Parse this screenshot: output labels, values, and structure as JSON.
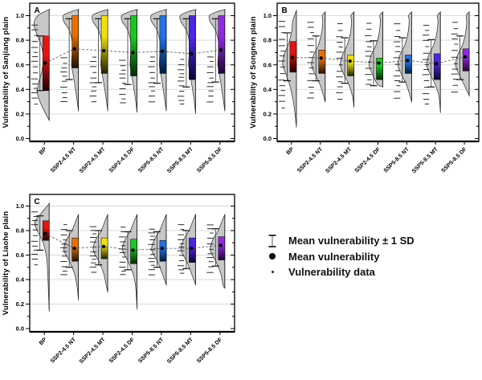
{
  "axis": {
    "range": [
      0,
      1.1
    ],
    "tick_labels": [
      "0.0",
      "0.2",
      "0.4",
      "0.6",
      "0.8",
      "1.0"
    ]
  },
  "categories": [
    "BP",
    "SSP2-4.5 NT",
    "SSP2-4.5 MT",
    "SSP2-4.5 DF",
    "SSP5-8.5 NT",
    "SSP5-8.5 MT",
    "SSP5-8.5 DF"
  ],
  "palette": [
    {
      "name": "red",
      "top": "#e81414",
      "bottom": "#1f0000"
    },
    {
      "name": "orange",
      "top": "#ee6f00",
      "bottom": "#221100"
    },
    {
      "name": "yellow",
      "top": "#f0e10a",
      "bottom": "#222200"
    },
    {
      "name": "green",
      "top": "#12cc1c",
      "bottom": "#012b01"
    },
    {
      "name": "blue",
      "top": "#2273e6",
      "bottom": "#001a3d"
    },
    {
      "name": "blue-violet",
      "top": "#4e26e2",
      "bottom": "#0c0433"
    },
    {
      "name": "violet",
      "top": "#9329e6",
      "bottom": "#1e0536"
    }
  ],
  "legend": {
    "items": [
      {
        "icon": "errorbar-icon",
        "label": "Mean vulnerability ± 1 SD"
      },
      {
        "icon": "mean-dot-icon",
        "label": "Mean vulnerability"
      },
      {
        "icon": "data-dot-icon",
        "label": "Vulnerability data"
      }
    ]
  },
  "chart_data": [
    {
      "type": "raincloud",
      "panel": "A",
      "ylabel": "Vulnerability of Sanjiang plain",
      "ylim": [
        0,
        1.1
      ],
      "categories": [
        "BP",
        "SSP2-4.5 NT",
        "SSP2-4.5 MT",
        "SSP2-4.5 DF",
        "SSP5-8.5 NT",
        "SSP5-8.5 MT",
        "SSP5-8.5 DF"
      ],
      "violin_default": [
        [
          0.23,
          0
        ],
        [
          0.32,
          0.1
        ],
        [
          0.42,
          0.22
        ],
        [
          0.52,
          0.35
        ],
        [
          0.6,
          0.45
        ],
        [
          0.68,
          0.42
        ],
        [
          0.78,
          0.4
        ],
        [
          0.88,
          0.6
        ],
        [
          0.95,
          0.95
        ],
        [
          1.0,
          1.0
        ],
        [
          1.03,
          0.55
        ],
        [
          1.05,
          0
        ]
      ],
      "cats": [
        {
          "label": "BP",
          "bar": [
            0.39,
            0.835
          ],
          "mean": 0.615,
          "whisker": [
            0.39,
            0.835
          ],
          "tail": 0.15,
          "rug": [
            0.28,
            0.92,
            16
          ],
          "violin": [
            [
              0.15,
              0
            ],
            [
              0.22,
              0.3
            ],
            [
              0.3,
              0.6
            ],
            [
              0.38,
              0.78
            ],
            [
              0.45,
              0.7
            ],
            [
              0.55,
              0.48
            ],
            [
              0.65,
              0.4
            ],
            [
              0.75,
              0.5
            ],
            [
              0.85,
              0.8
            ],
            [
              0.93,
              1.0
            ],
            [
              1.0,
              0.75
            ],
            [
              1.05,
              0
            ]
          ]
        },
        {
          "label": "SSP2-4.5 NT",
          "bar": [
            0.575,
            1.0
          ],
          "mean": 0.73,
          "whisker": [
            0.48,
            0.975
          ],
          "tail": 0.23,
          "rug": [
            0.3,
            0.66,
            10
          ]
        },
        {
          "label": "SSP2-4.5 MT",
          "bar": [
            0.53,
            1.0
          ],
          "mean": 0.715,
          "whisker": [
            0.455,
            0.975
          ],
          "tail": 0.23,
          "rug": [
            0.3,
            0.66,
            10
          ]
        },
        {
          "label": "SSP2-4.5 DF",
          "bar": [
            0.51,
            1.0
          ],
          "mean": 0.7,
          "whisker": [
            0.44,
            0.975
          ],
          "tail": 0.22,
          "rug": [
            0.29,
            0.64,
            10
          ]
        },
        {
          "label": "SSP5-8.5 NT",
          "bar": [
            0.53,
            1.0
          ],
          "mean": 0.71,
          "whisker": [
            0.45,
            0.975
          ],
          "tail": 0.23,
          "rug": [
            0.3,
            0.66,
            10
          ]
        },
        {
          "label": "SSP5-8.5 MT",
          "bar": [
            0.48,
            1.0
          ],
          "mean": 0.69,
          "whisker": [
            0.42,
            0.975
          ],
          "tail": 0.21,
          "rug": [
            0.28,
            0.64,
            11
          ]
        },
        {
          "label": "SSP5-8.5 DF",
          "bar": [
            0.53,
            1.0
          ],
          "mean": 0.72,
          "whisker": [
            0.46,
            0.975
          ],
          "tail": 0.23,
          "rug": [
            0.3,
            0.66,
            10
          ]
        }
      ]
    },
    {
      "type": "raincloud",
      "panel": "B",
      "ylabel": "Vulnerability of Songnen plain",
      "ylim": [
        0,
        1.1
      ],
      "categories": [
        "BP",
        "SSP2-4.5 NT",
        "SSP2-4.5 MT",
        "SSP2-4.5 DF",
        "SSP5-8.5 NT",
        "SSP5-8.5 MT",
        "SSP5-8.5 DF"
      ],
      "violin_default": [
        [
          0.28,
          0
        ],
        [
          0.35,
          0.12
        ],
        [
          0.44,
          0.38
        ],
        [
          0.53,
          0.78
        ],
        [
          0.6,
          1.0
        ],
        [
          0.68,
          0.85
        ],
        [
          0.76,
          0.5
        ],
        [
          0.85,
          0.28
        ],
        [
          0.95,
          0.18
        ],
        [
          1.0,
          0.22
        ],
        [
          1.03,
          0
        ]
      ],
      "cats": [
        {
          "label": "BP",
          "bar": [
            0.54,
            0.79
          ],
          "mean": 0.66,
          "whisker": [
            0.47,
            0.86
          ],
          "tail": 0.1,
          "rug": [
            0.25,
            0.95,
            16
          ],
          "violin": [
            [
              0.1,
              0
            ],
            [
              0.2,
              0.1
            ],
            [
              0.3,
              0.22
            ],
            [
              0.42,
              0.45
            ],
            [
              0.52,
              0.75
            ],
            [
              0.6,
              1.0
            ],
            [
              0.68,
              0.9
            ],
            [
              0.78,
              0.55
            ],
            [
              0.87,
              0.35
            ],
            [
              0.96,
              0.25
            ],
            [
              1.04,
              0
            ]
          ]
        },
        {
          "label": "SSP2-4.5 NT",
          "bar": [
            0.53,
            0.72
          ],
          "mean": 0.655,
          "whisker": [
            0.47,
            0.835
          ],
          "tail": 0.3,
          "rug": [
            0.33,
            0.95,
            14
          ]
        },
        {
          "label": "SSP2-4.5 MT",
          "bar": [
            0.51,
            0.68
          ],
          "mean": 0.63,
          "whisker": [
            0.45,
            0.82
          ],
          "tail": 0.26,
          "rug": [
            0.32,
            0.93,
            14
          ]
        },
        {
          "label": "SSP2-4.5 DF",
          "bar": [
            0.48,
            0.655
          ],
          "mean": 0.615,
          "whisker": [
            0.43,
            0.795
          ],
          "tail": 0.42,
          "rug": [
            0.44,
            0.93,
            12
          ]
        },
        {
          "label": "SSP5-8.5 NT",
          "bar": [
            0.53,
            0.68
          ],
          "mean": 0.635,
          "whisker": [
            0.46,
            0.82
          ],
          "tail": 0.3,
          "rug": [
            0.33,
            0.93,
            14
          ]
        },
        {
          "label": "SSP5-8.5 MT",
          "bar": [
            0.48,
            0.69
          ],
          "mean": 0.61,
          "whisker": [
            0.42,
            0.805
          ],
          "tail": 0.22,
          "rug": [
            0.28,
            0.93,
            15
          ]
        },
        {
          "label": "SSP5-8.5 DF",
          "bar": [
            0.55,
            0.73
          ],
          "mean": 0.665,
          "whisker": [
            0.48,
            0.835
          ],
          "tail": 0.35,
          "rug": [
            0.38,
            0.95,
            13
          ]
        }
      ]
    },
    {
      "type": "raincloud",
      "panel": "C",
      "ylabel": "Vulnerability of Liaohe plain",
      "ylim": [
        0,
        1.1
      ],
      "categories": [
        "BP",
        "SSP2-4.5 NT",
        "SSP2-4.5 MT",
        "SSP2-4.5 DF",
        "SSP5-8.5 NT",
        "SSP5-8.5 MT",
        "SSP5-8.5 DF"
      ],
      "violin_default": [
        [
          0.26,
          0
        ],
        [
          0.35,
          0.1
        ],
        [
          0.45,
          0.28
        ],
        [
          0.55,
          0.62
        ],
        [
          0.64,
          1.0
        ],
        [
          0.72,
          0.85
        ],
        [
          0.8,
          0.45
        ],
        [
          0.88,
          0.18
        ],
        [
          0.93,
          0
        ]
      ],
      "cats": [
        {
          "label": "BP",
          "bar": [
            0.72,
            0.88
          ],
          "mean": 0.775,
          "whisker": [
            0.64,
            0.92
          ],
          "tail": 0.15,
          "rug": [
            0.52,
            0.96,
            12
          ],
          "violin": [
            [
              0.15,
              0
            ],
            [
              0.3,
              0.05
            ],
            [
              0.45,
              0.1
            ],
            [
              0.58,
              0.18
            ],
            [
              0.7,
              0.42
            ],
            [
              0.8,
              0.82
            ],
            [
              0.87,
              1.0
            ],
            [
              0.94,
              0.55
            ],
            [
              1.02,
              0
            ]
          ]
        },
        {
          "label": "SSP2-4.5 NT",
          "bar": [
            0.55,
            0.74
          ],
          "mean": 0.655,
          "whisker": [
            0.5,
            0.8
          ],
          "tail": 0.24,
          "rug": [
            0.44,
            0.84,
            12
          ]
        },
        {
          "label": "SSP2-4.5 MT",
          "bar": [
            0.57,
            0.74
          ],
          "mean": 0.67,
          "whisker": [
            0.52,
            0.8
          ],
          "tail": 0.3,
          "rug": [
            0.46,
            0.84,
            12
          ]
        },
        {
          "label": "SSP2-4.5 DF",
          "bar": [
            0.53,
            0.73
          ],
          "mean": 0.64,
          "whisker": [
            0.48,
            0.79
          ],
          "tail": 0.17,
          "rug": [
            0.44,
            0.82,
            12
          ]
        },
        {
          "label": "SSP5-8.5 NT",
          "bar": [
            0.55,
            0.72
          ],
          "mean": 0.655,
          "whisker": [
            0.5,
            0.79
          ],
          "tail": 0.36,
          "rug": [
            0.44,
            0.82,
            12
          ]
        },
        {
          "label": "SSP5-8.5 MT",
          "bar": [
            0.54,
            0.74
          ],
          "mean": 0.655,
          "whisker": [
            0.49,
            0.8
          ],
          "tail": 0.36,
          "rug": [
            0.45,
            0.84,
            12
          ]
        },
        {
          "label": "SSP5-8.5 DF",
          "bar": [
            0.56,
            0.75
          ],
          "mean": 0.68,
          "whisker": [
            0.51,
            0.815
          ],
          "tail": 0.33,
          "rug": [
            0.46,
            0.85,
            11
          ]
        }
      ]
    }
  ]
}
